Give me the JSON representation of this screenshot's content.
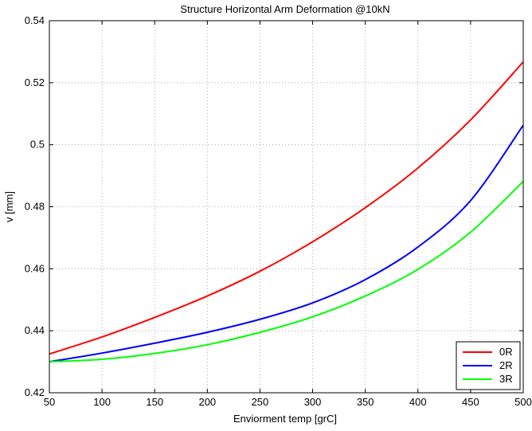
{
  "chart_data": {
    "type": "line",
    "title": "Structure Horizontal Arm Deformation @10kN",
    "xlabel": "Enviorment temp [grC]",
    "ylabel": "v [mm]",
    "xlim": [
      50,
      500
    ],
    "ylim": [
      0.42,
      0.54
    ],
    "xticks": [
      50,
      100,
      150,
      200,
      250,
      300,
      350,
      400,
      450,
      500
    ],
    "yticks": [
      0.42,
      0.44,
      0.46,
      0.48,
      0.5,
      0.52,
      0.54
    ],
    "xtick_labels": [
      "50",
      "100",
      "150",
      "200",
      "250",
      "300",
      "350",
      "400",
      "450",
      "500"
    ],
    "ytick_labels": [
      "0.42",
      "0.44",
      "0.46",
      "0.48",
      "0.5",
      "0.52",
      "0.54"
    ],
    "grid": true,
    "legend_position": "bottom-right",
    "x": [
      50,
      100,
      150,
      200,
      250,
      300,
      350,
      400,
      450,
      500
    ],
    "series": [
      {
        "name": "0R",
        "color": "#ff0000",
        "values": [
          0.4325,
          0.438,
          0.4443,
          0.4512,
          0.4592,
          0.4687,
          0.4797,
          0.4925,
          0.508,
          0.5267
        ]
      },
      {
        "name": "2R",
        "color": "#0000ff",
        "values": [
          0.43,
          0.4328,
          0.436,
          0.4395,
          0.4437,
          0.449,
          0.4565,
          0.467,
          0.482,
          0.5063
        ]
      },
      {
        "name": "3R",
        "color": "#00ff00",
        "values": [
          0.43,
          0.4308,
          0.4327,
          0.4355,
          0.4395,
          0.4445,
          0.4512,
          0.4598,
          0.4718,
          0.4882
        ]
      }
    ]
  }
}
